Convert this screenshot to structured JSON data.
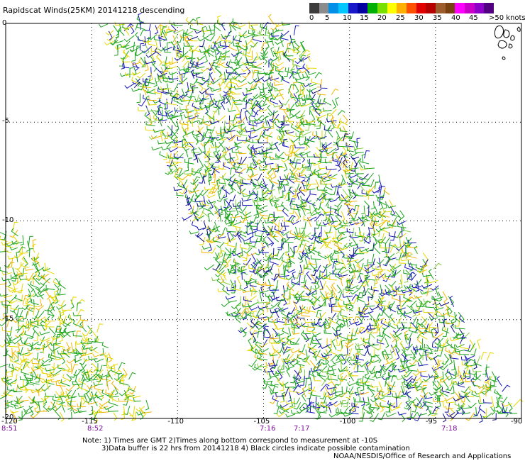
{
  "header": {
    "title": "Rapidscat Winds(25KM) 20141218 descending"
  },
  "legend": {
    "colors": [
      "#3c3c3c",
      "#8c8c8c",
      "#0090e8",
      "#00c8ff",
      "#1818c8",
      "#0000a0",
      "#00b000",
      "#78e000",
      "#ffff00",
      "#ffb000",
      "#ff5000",
      "#e00000",
      "#b40000",
      "#9c5c2c",
      "#784010",
      "#ff00ff",
      "#c800c8",
      "#8c00c8",
      "#500080"
    ],
    "labels": [
      "0",
      "5",
      "10",
      "15",
      "20",
      "25",
      "30",
      "35",
      "40",
      "45",
      ">50 knots"
    ],
    "unit": "knots"
  },
  "map": {
    "lat_labels": [
      "0",
      "-5",
      "-10",
      "-15",
      "-20"
    ],
    "lon_labels": [
      "-120",
      "-115",
      "-110",
      "-105",
      "-100",
      "-95",
      "-90"
    ],
    "pass_times": [
      "8:51",
      "8:52",
      "7:16",
      "7:17",
      "7:18"
    ]
  },
  "notes": {
    "line1": "Note: 1) Times are GMT 2)Times along bottom correspond to measurement at -10S",
    "line2": "3)Data buffer is 22 hrs from 20141218 4) Black circles indicate possible contamination",
    "credit": "NOAA/NESDIS/Office of Research and Applications"
  }
}
